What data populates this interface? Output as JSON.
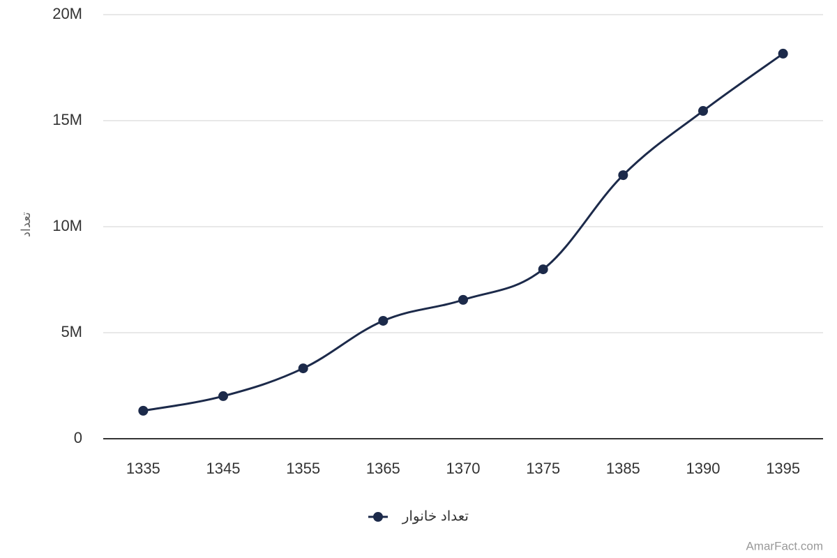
{
  "chart_data": {
    "type": "line",
    "y_label": "تعداد",
    "categories": [
      "1335",
      "1345",
      "1355",
      "1365",
      "1370",
      "1375",
      "1385",
      "1390",
      "1395"
    ],
    "series": [
      {
        "name": "تعداد خانوار",
        "color": "#1c2a4a",
        "values": [
          1320000,
          2010000,
          3320000,
          5560000,
          6550000,
          7990000,
          12430000,
          15460000,
          18160000
        ]
      }
    ],
    "ylim": [
      0,
      20000000
    ],
    "yticks": [
      0,
      {
        "value": 5000000,
        "label": "5M"
      },
      {
        "value": 10000000,
        "label": "10M"
      },
      {
        "value": 15000000,
        "label": "15M"
      },
      {
        "value": 20000000,
        "label": "20M"
      }
    ],
    "grid": true,
    "legend": "bottom",
    "watermark": "AmarFact.com"
  }
}
